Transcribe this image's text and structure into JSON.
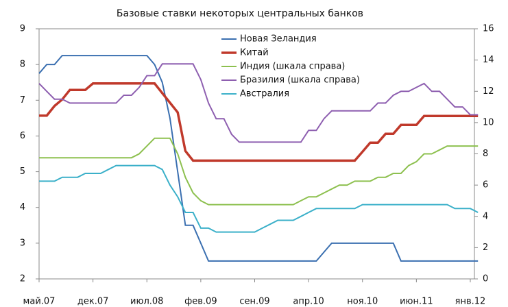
{
  "chart_data": {
    "type": "line",
    "title": "Базовые ставки некоторых центральных банков",
    "categories": [
      "май.07",
      null,
      null,
      null,
      null,
      null,
      null,
      "дек.07",
      null,
      null,
      null,
      null,
      null,
      null,
      "июл.08",
      null,
      null,
      null,
      null,
      null,
      null,
      "фев.09",
      null,
      null,
      null,
      null,
      null,
      null,
      "сен.09",
      null,
      null,
      null,
      null,
      null,
      null,
      "апр.10",
      null,
      null,
      null,
      null,
      null,
      null,
      "ноя.10",
      null,
      null,
      null,
      null,
      null,
      null,
      "июн.11",
      null,
      null,
      null,
      null,
      null,
      null,
      "янв.12",
      null
    ],
    "series": [
      {
        "name": "Новая Зеландия",
        "color": "#3a6fb0",
        "width": 2,
        "values": [
          7.75,
          8.0,
          8.0,
          8.25,
          8.25,
          8.25,
          8.25,
          8.25,
          8.25,
          8.25,
          8.25,
          8.25,
          8.25,
          8.25,
          8.25,
          8.0,
          7.5,
          6.5,
          5.0,
          3.5,
          3.5,
          3.0,
          2.5,
          2.5,
          2.5,
          2.5,
          2.5,
          2.5,
          2.5,
          2.5,
          2.5,
          2.5,
          2.5,
          2.5,
          2.5,
          2.5,
          2.5,
          2.75,
          3.0,
          3.0,
          3.0,
          3.0,
          3.0,
          3.0,
          3.0,
          3.0,
          3.0,
          2.5,
          2.5,
          2.5,
          2.5,
          2.5,
          2.5,
          2.5,
          2.5,
          2.5,
          2.5,
          2.5
        ]
      },
      {
        "name": "Китай",
        "color": "#c0392b",
        "width": 3.5,
        "values": [
          6.57,
          6.57,
          6.84,
          7.02,
          7.29,
          7.29,
          7.29,
          7.47,
          7.47,
          7.47,
          7.47,
          7.47,
          7.47,
          7.47,
          7.47,
          7.47,
          7.2,
          6.93,
          6.66,
          5.58,
          5.31,
          5.31,
          5.31,
          5.31,
          5.31,
          5.31,
          5.31,
          5.31,
          5.31,
          5.31,
          5.31,
          5.31,
          5.31,
          5.31,
          5.31,
          5.31,
          5.31,
          5.31,
          5.31,
          5.31,
          5.31,
          5.31,
          5.56,
          5.81,
          5.81,
          6.06,
          6.06,
          6.31,
          6.31,
          6.31,
          6.56,
          6.56,
          6.56,
          6.56,
          6.56,
          6.56,
          6.56,
          6.56
        ]
      },
      {
        "name": "Индия (шкала справа)",
        "color": "#8dc04f",
        "width": 2,
        "axis": "y2",
        "values": [
          7.75,
          7.75,
          7.75,
          7.75,
          7.75,
          7.75,
          7.75,
          7.75,
          7.75,
          7.75,
          7.75,
          7.75,
          7.75,
          8.0,
          8.5,
          9.0,
          9.0,
          9.0,
          8.0,
          6.5,
          5.5,
          5.0,
          4.75,
          4.75,
          4.75,
          4.75,
          4.75,
          4.75,
          4.75,
          4.75,
          4.75,
          4.75,
          4.75,
          4.75,
          5.0,
          5.25,
          5.25,
          5.5,
          5.75,
          6.0,
          6.0,
          6.25,
          6.25,
          6.25,
          6.5,
          6.5,
          6.75,
          6.75,
          7.25,
          7.5,
          8.0,
          8.0,
          8.25,
          8.5,
          8.5,
          8.5,
          8.5,
          8.5
        ]
      },
      {
        "name": "Бразилия (шкала справа)",
        "color": "#8e5fb0",
        "width": 2,
        "axis": "y2",
        "values": [
          12.5,
          12.0,
          11.5,
          11.5,
          11.25,
          11.25,
          11.25,
          11.25,
          11.25,
          11.25,
          11.25,
          11.75,
          11.75,
          12.25,
          13.0,
          13.0,
          13.75,
          13.75,
          13.75,
          13.75,
          13.75,
          12.75,
          11.25,
          10.25,
          10.25,
          9.25,
          8.75,
          8.75,
          8.75,
          8.75,
          8.75,
          8.75,
          8.75,
          8.75,
          8.75,
          9.5,
          9.5,
          10.25,
          10.75,
          10.75,
          10.75,
          10.75,
          10.75,
          10.75,
          11.25,
          11.25,
          11.75,
          12.0,
          12.0,
          12.25,
          12.5,
          12.0,
          12.0,
          11.5,
          11.0,
          11.0,
          10.5,
          10.5
        ]
      },
      {
        "name": "Австралия",
        "color": "#3bb0c9",
        "width": 2,
        "axis": "y2",
        "values": [
          6.25,
          6.25,
          6.25,
          6.5,
          6.5,
          6.5,
          6.75,
          6.75,
          6.75,
          7.0,
          7.25,
          7.25,
          7.25,
          7.25,
          7.25,
          7.25,
          7.0,
          6.0,
          5.25,
          4.25,
          4.25,
          3.25,
          3.25,
          3.0,
          3.0,
          3.0,
          3.0,
          3.0,
          3.0,
          3.25,
          3.5,
          3.75,
          3.75,
          3.75,
          4.0,
          4.25,
          4.5,
          4.5,
          4.5,
          4.5,
          4.5,
          4.5,
          4.75,
          4.75,
          4.75,
          4.75,
          4.75,
          4.75,
          4.75,
          4.75,
          4.75,
          4.75,
          4.75,
          4.75,
          4.5,
          4.5,
          4.5,
          4.25
        ]
      }
    ],
    "ylim": [
      2,
      9
    ],
    "yticks": [
      2,
      3,
      4,
      5,
      6,
      7,
      8,
      9
    ],
    "y2lim": [
      0,
      16
    ],
    "y2ticks": [
      0,
      2,
      4,
      6,
      8,
      10,
      12,
      14,
      16
    ],
    "legend": "top"
  }
}
